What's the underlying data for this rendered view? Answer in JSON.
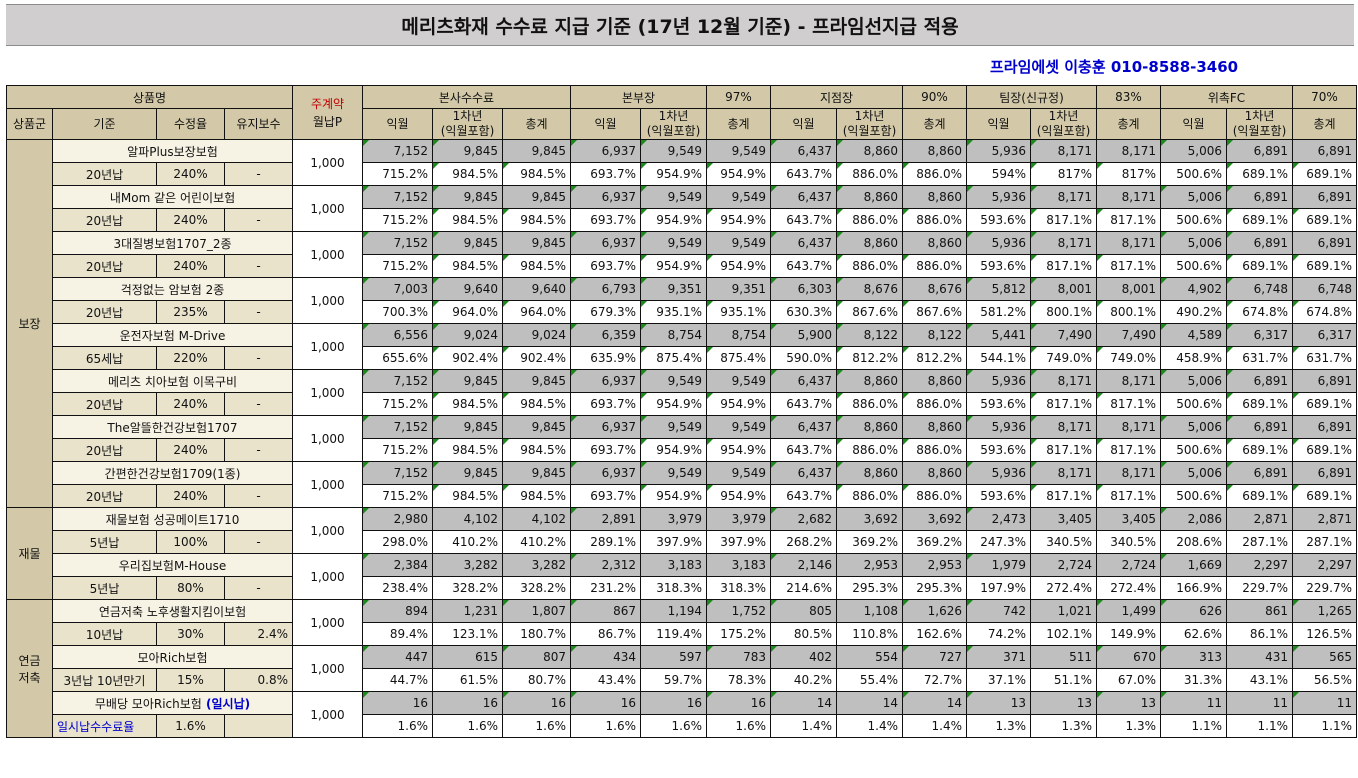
{
  "title": "메리츠화재 수수료 지급 기준 (17년 12월 기준) - 프라임선지급 적용",
  "contact": "프라임에셋 이충훈 010-8588-3460",
  "headers": {
    "product_name": "상품명",
    "product_group": "상품군",
    "standard": "기준",
    "rate": "수정율",
    "maintenance": "유지보수",
    "main_contract_top": "주계약",
    "main_contract_bottom": "월납P",
    "groups": [
      {
        "name": "본사수수료",
        "pct": ""
      },
      {
        "name": "본부장",
        "pct": "97%"
      },
      {
        "name": "지점장",
        "pct": "90%"
      },
      {
        "name": "팀장(신규정)",
        "pct": "83%"
      },
      {
        "name": "위촉FC",
        "pct": "70%"
      }
    ],
    "sub": [
      "익월",
      "1차년\n(익월포함)",
      "총계"
    ]
  },
  "rows": [
    {
      "name": "알파Plus보장보험",
      "std": "20년납",
      "rate": "240%",
      "maint": "-",
      "p": "1,000",
      "vals": [
        "7,152",
        "9,845",
        "9,845",
        "6,937",
        "9,549",
        "9,549",
        "6,437",
        "8,860",
        "8,860",
        "5,936",
        "8,171",
        "8,171",
        "5,006",
        "6,891",
        "6,891"
      ],
      "pcts": [
        "715.2%",
        "984.5%",
        "984.5%",
        "693.7%",
        "954.9%",
        "954.9%",
        "643.7%",
        "886.0%",
        "886.0%",
        "594%",
        "817%",
        "817%",
        "500.6%",
        "689.1%",
        "689.1%"
      ]
    },
    {
      "name": "내Mom 같은 어린이보험",
      "std": "20년납",
      "rate": "240%",
      "maint": "-",
      "p": "1,000",
      "vals": [
        "7,152",
        "9,845",
        "9,845",
        "6,937",
        "9,549",
        "9,549",
        "6,437",
        "8,860",
        "8,860",
        "5,936",
        "8,171",
        "8,171",
        "5,006",
        "6,891",
        "6,891"
      ],
      "pcts": [
        "715.2%",
        "984.5%",
        "984.5%",
        "693.7%",
        "954.9%",
        "954.9%",
        "643.7%",
        "886.0%",
        "886.0%",
        "593.6%",
        "817.1%",
        "817.1%",
        "500.6%",
        "689.1%",
        "689.1%"
      ]
    },
    {
      "name": "3대질병보험1707_2종",
      "std": "20년납",
      "rate": "240%",
      "maint": "-",
      "p": "1,000",
      "vals": [
        "7,152",
        "9,845",
        "9,845",
        "6,937",
        "9,549",
        "9,549",
        "6,437",
        "8,860",
        "8,860",
        "5,936",
        "8,171",
        "8,171",
        "5,006",
        "6,891",
        "6,891"
      ],
      "pcts": [
        "715.2%",
        "984.5%",
        "984.5%",
        "693.7%",
        "954.9%",
        "954.9%",
        "643.7%",
        "886.0%",
        "886.0%",
        "593.6%",
        "817.1%",
        "817.1%",
        "500.6%",
        "689.1%",
        "689.1%"
      ]
    },
    {
      "name": "걱정없는 암보험 2종",
      "std": "20년납",
      "rate": "235%",
      "maint": "-",
      "p": "1,000",
      "vals": [
        "7,003",
        "9,640",
        "9,640",
        "6,793",
        "9,351",
        "9,351",
        "6,303",
        "8,676",
        "8,676",
        "5,812",
        "8,001",
        "8,001",
        "4,902",
        "6,748",
        "6,748"
      ],
      "pcts": [
        "700.3%",
        "964.0%",
        "964.0%",
        "679.3%",
        "935.1%",
        "935.1%",
        "630.3%",
        "867.6%",
        "867.6%",
        "581.2%",
        "800.1%",
        "800.1%",
        "490.2%",
        "674.8%",
        "674.8%"
      ]
    },
    {
      "name": "운전자보험 M-Drive",
      "std": "65세납",
      "rate": "220%",
      "maint": "-",
      "p": "1,000",
      "vals": [
        "6,556",
        "9,024",
        "9,024",
        "6,359",
        "8,754",
        "8,754",
        "5,900",
        "8,122",
        "8,122",
        "5,441",
        "7,490",
        "7,490",
        "4,589",
        "6,317",
        "6,317"
      ],
      "pcts": [
        "655.6%",
        "902.4%",
        "902.4%",
        "635.9%",
        "875.4%",
        "875.4%",
        "590.0%",
        "812.2%",
        "812.2%",
        "544.1%",
        "749.0%",
        "749.0%",
        "458.9%",
        "631.7%",
        "631.7%"
      ]
    },
    {
      "name": "메리츠 치아보험 이목구비",
      "std": "20년납",
      "rate": "240%",
      "maint": "-",
      "p": "1,000",
      "vals": [
        "7,152",
        "9,845",
        "9,845",
        "6,937",
        "9,549",
        "9,549",
        "6,437",
        "8,860",
        "8,860",
        "5,936",
        "8,171",
        "8,171",
        "5,006",
        "6,891",
        "6,891"
      ],
      "pcts": [
        "715.2%",
        "984.5%",
        "984.5%",
        "693.7%",
        "954.9%",
        "954.9%",
        "643.7%",
        "886.0%",
        "886.0%",
        "593.6%",
        "817.1%",
        "817.1%",
        "500.6%",
        "689.1%",
        "689.1%"
      ]
    },
    {
      "name": "The알뜰한건강보험1707",
      "std": "20년납",
      "rate": "240%",
      "maint": "-",
      "p": "1,000",
      "vals": [
        "7,152",
        "9,845",
        "9,845",
        "6,937",
        "9,549",
        "9,549",
        "6,437",
        "8,860",
        "8,860",
        "5,936",
        "8,171",
        "8,171",
        "5,006",
        "6,891",
        "6,891"
      ],
      "pcts": [
        "715.2%",
        "984.5%",
        "984.5%",
        "693.7%",
        "954.9%",
        "954.9%",
        "643.7%",
        "886.0%",
        "886.0%",
        "593.6%",
        "817.1%",
        "817.1%",
        "500.6%",
        "689.1%",
        "689.1%"
      ]
    },
    {
      "name": "간편한건강보험1709(1종)",
      "std": "20년납",
      "rate": "240%",
      "maint": "-",
      "p": "1,000",
      "vals": [
        "7,152",
        "9,845",
        "9,845",
        "6,937",
        "9,549",
        "9,549",
        "6,437",
        "8,860",
        "8,860",
        "5,936",
        "8,171",
        "8,171",
        "5,006",
        "6,891",
        "6,891"
      ],
      "pcts": [
        "715.2%",
        "984.5%",
        "984.5%",
        "693.7%",
        "954.9%",
        "954.9%",
        "643.7%",
        "886.0%",
        "886.0%",
        "593.6%",
        "817.1%",
        "817.1%",
        "500.6%",
        "689.1%",
        "689.1%"
      ]
    },
    {
      "name": "재물보험 성공메이트1710",
      "std": "5년납",
      "rate": "100%",
      "maint": "-",
      "p": "1,000",
      "vals": [
        "2,980",
        "4,102",
        "4,102",
        "2,891",
        "3,979",
        "3,979",
        "2,682",
        "3,692",
        "3,692",
        "2,473",
        "3,405",
        "3,405",
        "2,086",
        "2,871",
        "2,871"
      ],
      "pcts": [
        "298.0%",
        "410.2%",
        "410.2%",
        "289.1%",
        "397.9%",
        "397.9%",
        "268.2%",
        "369.2%",
        "369.2%",
        "247.3%",
        "340.5%",
        "340.5%",
        "208.6%",
        "287.1%",
        "287.1%"
      ]
    },
    {
      "name": "우리집보험M-House",
      "std": "5년납",
      "rate": "80%",
      "maint": "-",
      "p": "1,000",
      "vals": [
        "2,384",
        "3,282",
        "3,282",
        "2,312",
        "3,183",
        "3,183",
        "2,146",
        "2,953",
        "2,953",
        "1,979",
        "2,724",
        "2,724",
        "1,669",
        "2,297",
        "2,297"
      ],
      "pcts": [
        "238.4%",
        "328.2%",
        "328.2%",
        "231.2%",
        "318.3%",
        "318.3%",
        "214.6%",
        "295.3%",
        "295.3%",
        "197.9%",
        "272.4%",
        "272.4%",
        "166.9%",
        "229.7%",
        "229.7%"
      ]
    },
    {
      "name": "연금저축 노후생활지킴이보험",
      "std": "10년납",
      "rate": "30%",
      "maint": "2.4%",
      "p": "1,000",
      "vals": [
        "894",
        "1,231",
        "1,807",
        "867",
        "1,194",
        "1,752",
        "805",
        "1,108",
        "1,626",
        "742",
        "1,021",
        "1,499",
        "626",
        "861",
        "1,265"
      ],
      "pcts": [
        "89.4%",
        "123.1%",
        "180.7%",
        "86.7%",
        "119.4%",
        "175.2%",
        "80.5%",
        "110.8%",
        "162.6%",
        "74.2%",
        "102.1%",
        "149.9%",
        "62.6%",
        "86.1%",
        "126.5%"
      ]
    },
    {
      "name": "모아Rich보험",
      "std": "3년납 10년만기",
      "rate": "15%",
      "maint": "0.8%",
      "p": "1,000",
      "vals": [
        "447",
        "615",
        "807",
        "434",
        "597",
        "783",
        "402",
        "554",
        "727",
        "371",
        "511",
        "670",
        "313",
        "431",
        "565"
      ],
      "pcts": [
        "44.7%",
        "61.5%",
        "80.7%",
        "43.4%",
        "59.7%",
        "78.3%",
        "40.2%",
        "55.4%",
        "72.7%",
        "37.1%",
        "51.1%",
        "67.0%",
        "31.3%",
        "43.1%",
        "56.5%"
      ]
    },
    {
      "name": "무배당 모아Rich보험",
      "name_suffix": "(일시납)",
      "std": "일시납수수료율",
      "rate": "1.6%",
      "maint": "",
      "p": "1,000",
      "vals": [
        "16",
        "16",
        "16",
        "16",
        "16",
        "16",
        "14",
        "14",
        "14",
        "13",
        "13",
        "13",
        "11",
        "11",
        "11"
      ],
      "pcts": [
        "1.6%",
        "1.6%",
        "1.6%",
        "1.6%",
        "1.6%",
        "1.6%",
        "1.4%",
        "1.4%",
        "1.4%",
        "1.3%",
        "1.3%",
        "1.3%",
        "1.1%",
        "1.1%",
        "1.1%"
      ]
    }
  ],
  "groups_left": [
    "보장",
    "재물",
    "연금\n저축"
  ]
}
